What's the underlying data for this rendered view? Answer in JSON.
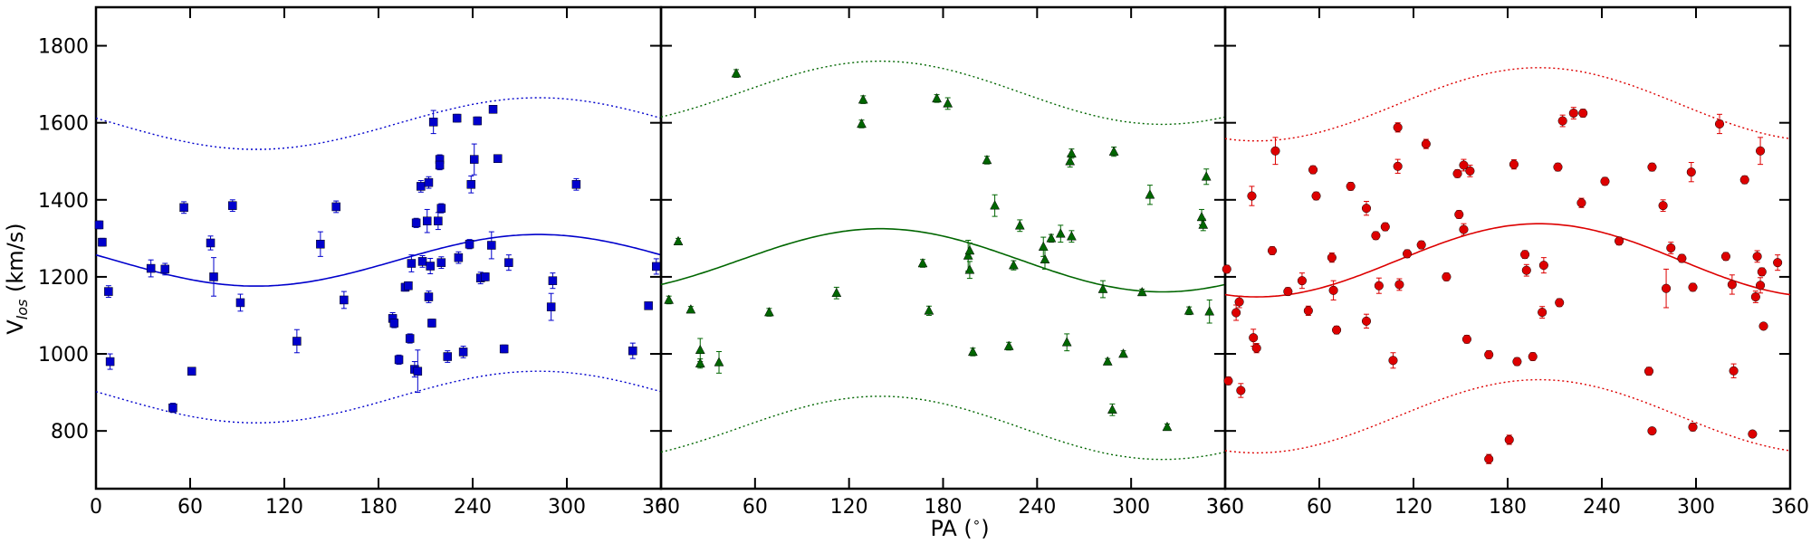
{
  "figure": {
    "ylabel": "V",
    "ylabel_sub": "los",
    "ylabel_unit": " (km/s)",
    "xlabel": "PA (",
    "xlabel_deg": "∘",
    "xlabel_end": ")"
  },
  "chart_data": [
    {
      "type": "scatter",
      "marker": "square",
      "color": "#0000cc",
      "xlim": [
        0,
        360
      ],
      "ylim": [
        650,
        1900
      ],
      "xticks": [
        "0",
        "60",
        "120",
        "180",
        "240",
        "300",
        "360"
      ],
      "yticks": [
        "800",
        "1000",
        "1200",
        "1400",
        "1600",
        "1800"
      ],
      "fit": {
        "mean": 1243,
        "amplitude": 67,
        "phase_peak": 282,
        "band": 355
      },
      "points": [
        {
          "x": 2,
          "y": 1335,
          "err": 10
        },
        {
          "x": 4,
          "y": 1290,
          "err": 10
        },
        {
          "x": 8,
          "y": 1162,
          "err": 15
        },
        {
          "x": 9,
          "y": 980,
          "err": 20
        },
        {
          "x": 35,
          "y": 1222,
          "err": 22
        },
        {
          "x": 44,
          "y": 1220,
          "err": 15
        },
        {
          "x": 49,
          "y": 860,
          "err": 12
        },
        {
          "x": 56,
          "y": 1380,
          "err": 15
        },
        {
          "x": 61,
          "y": 955,
          "err": 8
        },
        {
          "x": 73,
          "y": 1288,
          "err": 18
        },
        {
          "x": 75,
          "y": 1200,
          "err": 50
        },
        {
          "x": 87,
          "y": 1385,
          "err": 15
        },
        {
          "x": 92,
          "y": 1133,
          "err": 22
        },
        {
          "x": 128,
          "y": 1033,
          "err": 30
        },
        {
          "x": 143,
          "y": 1285,
          "err": 32
        },
        {
          "x": 153,
          "y": 1382,
          "err": 15
        },
        {
          "x": 158,
          "y": 1140,
          "err": 22
        },
        {
          "x": 189,
          "y": 1092,
          "err": 15
        },
        {
          "x": 190,
          "y": 1080,
          "err": 12
        },
        {
          "x": 193,
          "y": 985,
          "err": 12
        },
        {
          "x": 197,
          "y": 1173,
          "err": 10
        },
        {
          "x": 199,
          "y": 1177,
          "err": 10
        },
        {
          "x": 200,
          "y": 1040,
          "err": 12
        },
        {
          "x": 201,
          "y": 1235,
          "err": 22
        },
        {
          "x": 203,
          "y": 960,
          "err": 20
        },
        {
          "x": 204,
          "y": 1340,
          "err": 12
        },
        {
          "x": 205,
          "y": 955,
          "err": 55
        },
        {
          "x": 207,
          "y": 1435,
          "err": 15
        },
        {
          "x": 208,
          "y": 1240,
          "err": 15
        },
        {
          "x": 211,
          "y": 1345,
          "err": 30
        },
        {
          "x": 212,
          "y": 1445,
          "err": 15
        },
        {
          "x": 212,
          "y": 1148,
          "err": 15
        },
        {
          "x": 213,
          "y": 1228,
          "err": 20
        },
        {
          "x": 214,
          "y": 1080,
          "err": 10
        },
        {
          "x": 215,
          "y": 1602,
          "err": 30
        },
        {
          "x": 218,
          "y": 1345,
          "err": 22
        },
        {
          "x": 219,
          "y": 1505,
          "err": 12
        },
        {
          "x": 219,
          "y": 1490,
          "err": 12
        },
        {
          "x": 220,
          "y": 1378,
          "err": 12
        },
        {
          "x": 220,
          "y": 1237,
          "err": 15
        },
        {
          "x": 224,
          "y": 993,
          "err": 15
        },
        {
          "x": 230,
          "y": 1612,
          "err": 10
        },
        {
          "x": 231,
          "y": 1250,
          "err": 15
        },
        {
          "x": 234,
          "y": 1005,
          "err": 15
        },
        {
          "x": 238,
          "y": 1285,
          "err": 12
        },
        {
          "x": 239,
          "y": 1440,
          "err": 22
        },
        {
          "x": 241,
          "y": 1505,
          "err": 40
        },
        {
          "x": 243,
          "y": 1605,
          "err": 10
        },
        {
          "x": 245,
          "y": 1197,
          "err": 15
        },
        {
          "x": 248,
          "y": 1200,
          "err": 10
        },
        {
          "x": 252,
          "y": 1282,
          "err": 35
        },
        {
          "x": 253,
          "y": 1635,
          "err": 10
        },
        {
          "x": 256,
          "y": 1507,
          "err": 10
        },
        {
          "x": 260,
          "y": 1013,
          "err": 10
        },
        {
          "x": 263,
          "y": 1237,
          "err": 20
        },
        {
          "x": 290,
          "y": 1122,
          "err": 35
        },
        {
          "x": 291,
          "y": 1190,
          "err": 20
        },
        {
          "x": 306,
          "y": 1440,
          "err": 15
        },
        {
          "x": 342,
          "y": 1008,
          "err": 20
        },
        {
          "x": 352,
          "y": 1125,
          "err": 8
        },
        {
          "x": 357,
          "y": 1227,
          "err": 20
        }
      ]
    },
    {
      "type": "scatter",
      "marker": "triangle",
      "color": "#006600",
      "xlim": [
        0,
        360
      ],
      "ylim": [
        650,
        1900
      ],
      "xticks": [
        "0",
        "60",
        "120",
        "180",
        "240",
        "300",
        "360"
      ],
      "yticks": [
        "800",
        "1000",
        "1200",
        "1400",
        "1600",
        "1800"
      ],
      "fit": {
        "mean": 1243,
        "amplitude": 82,
        "phase_peak": 140,
        "band": 435
      },
      "points": [
        {
          "x": 5,
          "y": 1140,
          "err": 10
        },
        {
          "x": 11,
          "y": 1292,
          "err": 8
        },
        {
          "x": 19,
          "y": 1115,
          "err": 8
        },
        {
          "x": 25,
          "y": 1010,
          "err": 30
        },
        {
          "x": 25,
          "y": 975,
          "err": 12
        },
        {
          "x": 37,
          "y": 978,
          "err": 28
        },
        {
          "x": 48,
          "y": 1728,
          "err": 10
        },
        {
          "x": 69,
          "y": 1108,
          "err": 10
        },
        {
          "x": 112,
          "y": 1158,
          "err": 15
        },
        {
          "x": 128,
          "y": 1597,
          "err": 10
        },
        {
          "x": 129,
          "y": 1660,
          "err": 10
        },
        {
          "x": 167,
          "y": 1235,
          "err": 10
        },
        {
          "x": 171,
          "y": 1112,
          "err": 12
        },
        {
          "x": 176,
          "y": 1663,
          "err": 10
        },
        {
          "x": 183,
          "y": 1650,
          "err": 15
        },
        {
          "x": 196,
          "y": 1255,
          "err": 40
        },
        {
          "x": 197,
          "y": 1268,
          "err": 20
        },
        {
          "x": 197,
          "y": 1218,
          "err": 22
        },
        {
          "x": 199,
          "y": 1005,
          "err": 10
        },
        {
          "x": 208,
          "y": 1503,
          "err": 10
        },
        {
          "x": 213,
          "y": 1385,
          "err": 28
        },
        {
          "x": 222,
          "y": 1020,
          "err": 10
        },
        {
          "x": 225,
          "y": 1230,
          "err": 12
        },
        {
          "x": 229,
          "y": 1333,
          "err": 15
        },
        {
          "x": 244,
          "y": 1278,
          "err": 25
        },
        {
          "x": 245,
          "y": 1245,
          "err": 25
        },
        {
          "x": 249,
          "y": 1300,
          "err": 10
        },
        {
          "x": 255,
          "y": 1312,
          "err": 22
        },
        {
          "x": 259,
          "y": 1030,
          "err": 22
        },
        {
          "x": 261,
          "y": 1500,
          "err": 15
        },
        {
          "x": 262,
          "y": 1520,
          "err": 12
        },
        {
          "x": 262,
          "y": 1305,
          "err": 15
        },
        {
          "x": 282,
          "y": 1168,
          "err": 22
        },
        {
          "x": 285,
          "y": 980,
          "err": 8
        },
        {
          "x": 288,
          "y": 855,
          "err": 15
        },
        {
          "x": 289,
          "y": 1525,
          "err": 12
        },
        {
          "x": 295,
          "y": 1000,
          "err": 8
        },
        {
          "x": 307,
          "y": 1160,
          "err": 8
        },
        {
          "x": 312,
          "y": 1413,
          "err": 25
        },
        {
          "x": 323,
          "y": 810,
          "err": 8
        },
        {
          "x": 337,
          "y": 1112,
          "err": 10
        },
        {
          "x": 345,
          "y": 1355,
          "err": 20
        },
        {
          "x": 346,
          "y": 1335,
          "err": 15
        },
        {
          "x": 348,
          "y": 1460,
          "err": 20
        },
        {
          "x": 350,
          "y": 1110,
          "err": 30
        }
      ]
    },
    {
      "type": "scatter",
      "marker": "circle",
      "color": "#dd0000",
      "xlim": [
        0,
        360
      ],
      "ylim": [
        650,
        1900
      ],
      "xticks": [
        "360",
        "60",
        "120",
        "180",
        "240",
        "300",
        "360"
      ],
      "yticks": [
        "800",
        "1000",
        "1200",
        "1400",
        "1600",
        "1800"
      ],
      "fit": {
        "mean": 1243,
        "amplitude": 95,
        "phase_peak": 200,
        "band": 405
      },
      "points": [
        {
          "x": 1,
          "y": 1220,
          "err": 10
        },
        {
          "x": 2,
          "y": 930,
          "err": 10
        },
        {
          "x": 7,
          "y": 1107,
          "err": 20
        },
        {
          "x": 9,
          "y": 1135,
          "err": 15
        },
        {
          "x": 10,
          "y": 905,
          "err": 18
        },
        {
          "x": 17,
          "y": 1410,
          "err": 25
        },
        {
          "x": 18,
          "y": 1042,
          "err": 22
        },
        {
          "x": 20,
          "y": 1015,
          "err": 12
        },
        {
          "x": 30,
          "y": 1268,
          "err": 10
        },
        {
          "x": 32,
          "y": 1527,
          "err": 35
        },
        {
          "x": 40,
          "y": 1162,
          "err": 10
        },
        {
          "x": 49,
          "y": 1190,
          "err": 20
        },
        {
          "x": 53,
          "y": 1112,
          "err": 12
        },
        {
          "x": 56,
          "y": 1478,
          "err": 10
        },
        {
          "x": 58,
          "y": 1410,
          "err": 10
        },
        {
          "x": 68,
          "y": 1250,
          "err": 12
        },
        {
          "x": 69,
          "y": 1165,
          "err": 25
        },
        {
          "x": 71,
          "y": 1062,
          "err": 10
        },
        {
          "x": 80,
          "y": 1435,
          "err": 10
        },
        {
          "x": 90,
          "y": 1378,
          "err": 18
        },
        {
          "x": 90,
          "y": 1085,
          "err": 18
        },
        {
          "x": 96,
          "y": 1307,
          "err": 10
        },
        {
          "x": 98,
          "y": 1177,
          "err": 20
        },
        {
          "x": 102,
          "y": 1330,
          "err": 10
        },
        {
          "x": 107,
          "y": 983,
          "err": 20
        },
        {
          "x": 110,
          "y": 1588,
          "err": 12
        },
        {
          "x": 110,
          "y": 1487,
          "err": 18
        },
        {
          "x": 111,
          "y": 1180,
          "err": 15
        },
        {
          "x": 116,
          "y": 1260,
          "err": 10
        },
        {
          "x": 125,
          "y": 1283,
          "err": 10
        },
        {
          "x": 128,
          "y": 1545,
          "err": 12
        },
        {
          "x": 141,
          "y": 1200,
          "err": 10
        },
        {
          "x": 148,
          "y": 1468,
          "err": 10
        },
        {
          "x": 149,
          "y": 1362,
          "err": 10
        },
        {
          "x": 152,
          "y": 1490,
          "err": 15
        },
        {
          "x": 152,
          "y": 1323,
          "err": 15
        },
        {
          "x": 154,
          "y": 1038,
          "err": 10
        },
        {
          "x": 156,
          "y": 1475,
          "err": 15
        },
        {
          "x": 168,
          "y": 998,
          "err": 10
        },
        {
          "x": 168,
          "y": 727,
          "err": 12
        },
        {
          "x": 181,
          "y": 777,
          "err": 12
        },
        {
          "x": 184,
          "y": 1492,
          "err": 12
        },
        {
          "x": 186,
          "y": 980,
          "err": 10
        },
        {
          "x": 191,
          "y": 1258,
          "err": 10
        },
        {
          "x": 192,
          "y": 1217,
          "err": 15
        },
        {
          "x": 196,
          "y": 993,
          "err": 10
        },
        {
          "x": 202,
          "y": 1108,
          "err": 15
        },
        {
          "x": 203,
          "y": 1230,
          "err": 20
        },
        {
          "x": 212,
          "y": 1485,
          "err": 10
        },
        {
          "x": 213,
          "y": 1133,
          "err": 10
        },
        {
          "x": 215,
          "y": 1605,
          "err": 15
        },
        {
          "x": 222,
          "y": 1625,
          "err": 15
        },
        {
          "x": 227,
          "y": 1392,
          "err": 12
        },
        {
          "x": 228,
          "y": 1625,
          "err": 10
        },
        {
          "x": 242,
          "y": 1448,
          "err": 10
        },
        {
          "x": 251,
          "y": 1293,
          "err": 10
        },
        {
          "x": 270,
          "y": 955,
          "err": 10
        },
        {
          "x": 272,
          "y": 800,
          "err": 8
        },
        {
          "x": 272,
          "y": 1485,
          "err": 10
        },
        {
          "x": 279,
          "y": 1385,
          "err": 15
        },
        {
          "x": 281,
          "y": 1170,
          "err": 50
        },
        {
          "x": 284,
          "y": 1275,
          "err": 15
        },
        {
          "x": 291,
          "y": 1248,
          "err": 10
        },
        {
          "x": 297,
          "y": 1472,
          "err": 25
        },
        {
          "x": 298,
          "y": 1173,
          "err": 10
        },
        {
          "x": 298,
          "y": 810,
          "err": 10
        },
        {
          "x": 315,
          "y": 1597,
          "err": 25
        },
        {
          "x": 319,
          "y": 1253,
          "err": 10
        },
        {
          "x": 323,
          "y": 1180,
          "err": 25
        },
        {
          "x": 324,
          "y": 956,
          "err": 18
        },
        {
          "x": 331,
          "y": 1452,
          "err": 10
        },
        {
          "x": 336,
          "y": 792,
          "err": 8
        },
        {
          "x": 338,
          "y": 1148,
          "err": 15
        },
        {
          "x": 339,
          "y": 1253,
          "err": 15
        },
        {
          "x": 341,
          "y": 1527,
          "err": 35
        },
        {
          "x": 341,
          "y": 1178,
          "err": 20
        },
        {
          "x": 342,
          "y": 1213,
          "err": 10
        },
        {
          "x": 343,
          "y": 1072,
          "err": 8
        },
        {
          "x": 352,
          "y": 1237,
          "err": 20
        }
      ]
    }
  ]
}
